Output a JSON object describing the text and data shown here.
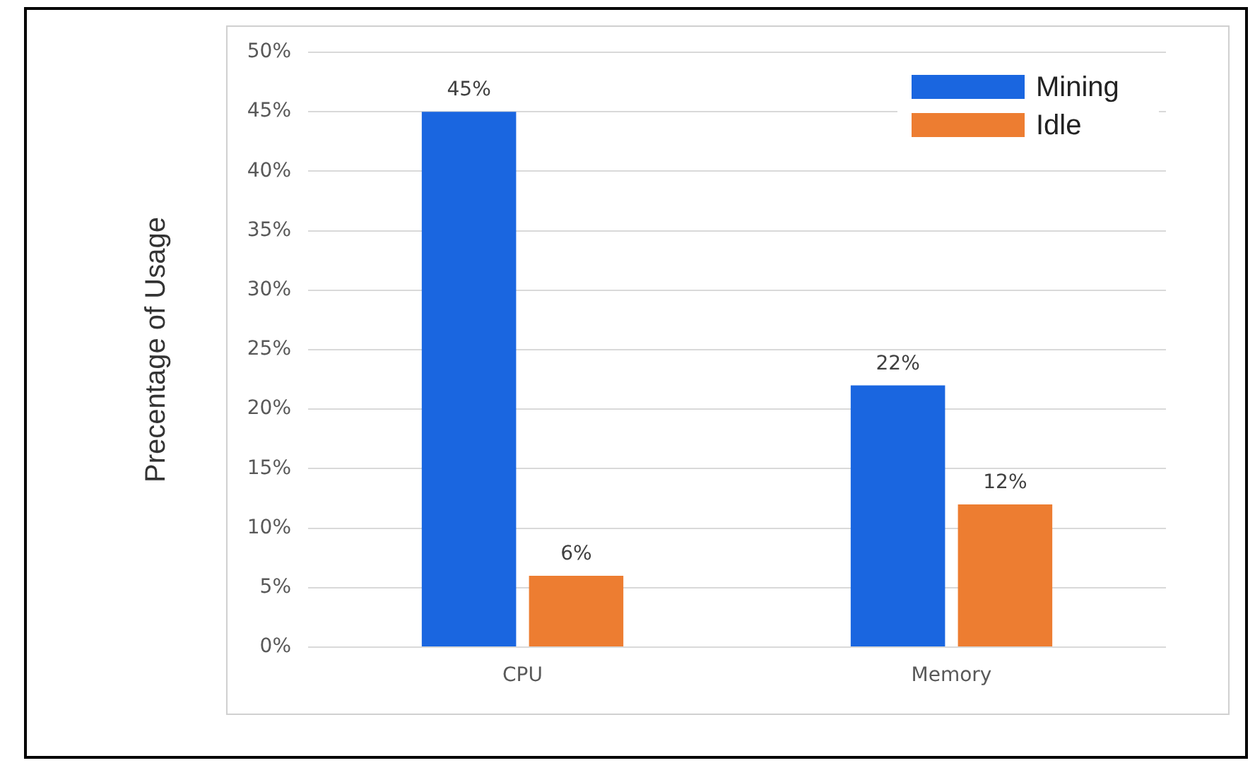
{
  "chart_data": {
    "type": "bar",
    "ylabel": "Precentage of Usage",
    "categories": [
      "CPU",
      "Memory"
    ],
    "series": [
      {
        "name": "Mining",
        "color": "#1a66e0",
        "values": [
          45,
          22
        ],
        "value_labels": [
          "45%",
          "22%"
        ]
      },
      {
        "name": "Idle",
        "color": "#ed7d31",
        "values": [
          6,
          12
        ],
        "value_labels": [
          "6%",
          "12%"
        ]
      }
    ],
    "ylim": [
      0,
      50
    ],
    "yticks": [
      {
        "value": 0,
        "label": "0%"
      },
      {
        "value": 5,
        "label": "5%"
      },
      {
        "value": 10,
        "label": "10%"
      },
      {
        "value": 15,
        "label": "15%"
      },
      {
        "value": 20,
        "label": "20%"
      },
      {
        "value": 25,
        "label": "25%"
      },
      {
        "value": 30,
        "label": "30%"
      },
      {
        "value": 35,
        "label": "35%"
      },
      {
        "value": 40,
        "label": "40%"
      },
      {
        "value": 45,
        "label": "45%"
      },
      {
        "value": 50,
        "label": "50%"
      }
    ],
    "grid": "y",
    "legend": "top right"
  }
}
